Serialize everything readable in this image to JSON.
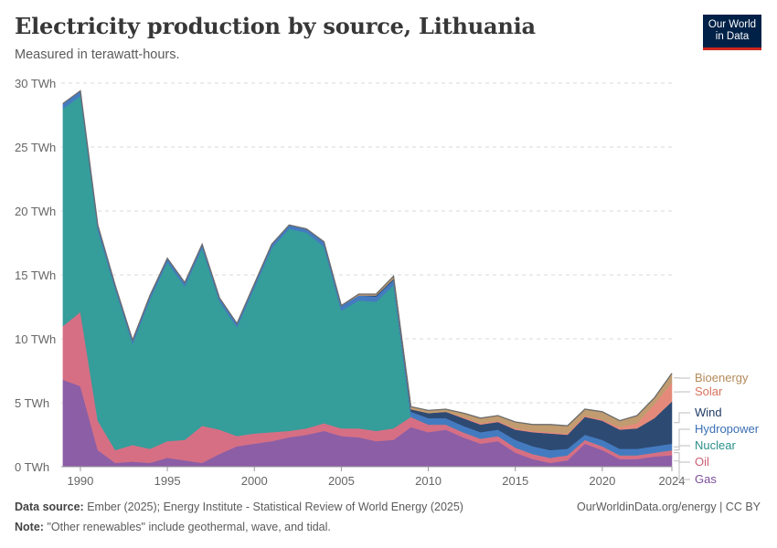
{
  "header": {
    "title": "Electricity production by source, Lithuania",
    "subtitle": "Measured in terawatt-hours."
  },
  "logo": {
    "line1": "Our World",
    "line2": "in Data"
  },
  "footer": {
    "source_label": "Data source:",
    "source_text": "Ember (2025); Energy Institute - Statistical Review of World Energy (2025)",
    "note_label": "Note:",
    "note_text": "\"Other renewables\" include geothermal, wave, and tidal.",
    "credit": "OurWorldinData.org/energy | CC BY"
  },
  "chart_data": {
    "type": "area",
    "stacked": true,
    "title": "Electricity production by source, Lithuania",
    "unit": "TWh",
    "ylim": [
      0,
      30
    ],
    "y_ticks": [
      0,
      5,
      10,
      15,
      20,
      25,
      30
    ],
    "y_tick_labels": [
      "0 TWh",
      "5 TWh",
      "10 TWh",
      "15 TWh",
      "20 TWh",
      "25 TWh",
      "30 TWh"
    ],
    "x_ticks": [
      1990,
      1995,
      2000,
      2005,
      2010,
      2015,
      2020,
      2024
    ],
    "x_tick_labels": [
      "1990",
      "1995",
      "2000",
      "2005",
      "2010",
      "2015",
      "2020",
      "2024"
    ],
    "x": [
      1989,
      1990,
      1991,
      1992,
      1993,
      1994,
      1995,
      1996,
      1997,
      1998,
      1999,
      2000,
      2001,
      2002,
      2003,
      2004,
      2005,
      2006,
      2007,
      2008,
      2009,
      2010,
      2011,
      2012,
      2013,
      2014,
      2015,
      2016,
      2017,
      2018,
      2019,
      2020,
      2021,
      2022,
      2023,
      2024
    ],
    "series": [
      {
        "name": "Gas",
        "color": "#8c5ea6",
        "values": [
          6.8,
          6.3,
          1.3,
          0.3,
          0.4,
          0.3,
          0.7,
          0.5,
          0.3,
          1.0,
          1.6,
          1.8,
          2.0,
          2.3,
          2.5,
          2.8,
          2.4,
          2.3,
          2.0,
          2.1,
          3.1,
          2.7,
          2.9,
          2.3,
          1.8,
          2.0,
          1.1,
          0.6,
          0.3,
          0.5,
          1.8,
          1.3,
          0.6,
          0.6,
          0.8,
          0.9
        ]
      },
      {
        "name": "Oil",
        "color": "#d66f84",
        "values": [
          4.2,
          5.8,
          2.3,
          1.0,
          1.3,
          1.1,
          1.3,
          1.6,
          2.9,
          1.9,
          0.8,
          0.8,
          0.7,
          0.5,
          0.5,
          0.6,
          0.6,
          0.7,
          0.8,
          0.9,
          0.8,
          0.6,
          0.4,
          0.4,
          0.4,
          0.4,
          0.4,
          0.4,
          0.4,
          0.4,
          0.3,
          0.3,
          0.3,
          0.3,
          0.3,
          0.4
        ]
      },
      {
        "name": "Nuclear",
        "color": "#359d9a",
        "values": [
          17.0,
          16.9,
          14.9,
          12.6,
          7.9,
          11.7,
          14.0,
          12.0,
          13.9,
          10.0,
          8.5,
          11.4,
          14.4,
          15.8,
          15.3,
          13.8,
          9.2,
          10.0,
          10.1,
          11.2,
          0,
          0,
          0,
          0,
          0,
          0,
          0,
          0,
          0,
          0,
          0,
          0,
          0,
          0,
          0,
          0
        ]
      },
      {
        "name": "Hydropower",
        "color": "#447bc0",
        "values": [
          0.4,
          0.4,
          0.4,
          0.3,
          0.3,
          0.3,
          0.3,
          0.3,
          0.3,
          0.3,
          0.3,
          0.3,
          0.3,
          0.3,
          0.3,
          0.4,
          0.4,
          0.4,
          0.4,
          0.4,
          0.4,
          0.5,
          0.5,
          0.5,
          0.5,
          0.5,
          0.6,
          0.6,
          0.6,
          0.5,
          0.4,
          0.5,
          0.5,
          0.5,
          0.5,
          0.5
        ]
      },
      {
        "name": "Wind",
        "color": "#2d4a73",
        "values": [
          0,
          0,
          0,
          0,
          0,
          0,
          0,
          0,
          0,
          0,
          0,
          0,
          0,
          0,
          0,
          0,
          0,
          0,
          0.1,
          0.1,
          0.2,
          0.4,
          0.5,
          0.6,
          0.6,
          0.6,
          0.8,
          1.1,
          1.3,
          1.1,
          1.4,
          1.5,
          1.5,
          1.6,
          2.2,
          3.3
        ]
      },
      {
        "name": "Solar",
        "color": "#e58a7b",
        "values": [
          0,
          0,
          0,
          0,
          0,
          0,
          0,
          0,
          0,
          0,
          0,
          0,
          0,
          0,
          0,
          0,
          0,
          0,
          0,
          0,
          0,
          0,
          0,
          0.1,
          0.1,
          0.1,
          0.1,
          0.1,
          0.1,
          0.1,
          0.1,
          0.1,
          0.2,
          0.4,
          1.1,
          1.5
        ]
      },
      {
        "name": "Bioenergy",
        "color": "#c19c70",
        "values": [
          0,
          0,
          0,
          0,
          0,
          0,
          0,
          0,
          0,
          0,
          0,
          0,
          0,
          0,
          0,
          0,
          0,
          0.1,
          0.1,
          0.2,
          0.2,
          0.2,
          0.2,
          0.3,
          0.4,
          0.4,
          0.5,
          0.5,
          0.6,
          0.6,
          0.5,
          0.6,
          0.5,
          0.6,
          0.5,
          0.7
        ]
      }
    ],
    "legend": [
      {
        "name": "Bioenergy",
        "color": "#b38a5a"
      },
      {
        "name": "Solar",
        "color": "#d9735f"
      },
      {
        "name": "Wind",
        "color": "#1f3a66"
      },
      {
        "name": "Hydropower",
        "color": "#3a6fb3"
      },
      {
        "name": "Nuclear",
        "color": "#2a8f8b"
      },
      {
        "name": "Oil",
        "color": "#cc5d73"
      },
      {
        "name": "Gas",
        "color": "#7d4f99"
      }
    ]
  }
}
